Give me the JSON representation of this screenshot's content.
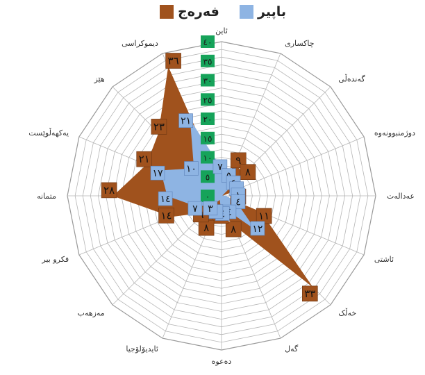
{
  "chart_data": {
    "type": "radar",
    "categories": [
      "ئاین",
      "چاکساری",
      "گەندەڵی",
      "دوژمنبوونەوە",
      "عەدالەت",
      "ئاشتی",
      "خەڵک",
      "گەل",
      "دەعوە",
      "ئایدیۆلۆجیا",
      "مەزهەب",
      "فکرو بیر",
      "متمانە",
      "یەکهەڵوێست",
      "هێز",
      "دیموکراسی"
    ],
    "rlim": [
      0,
      40
    ],
    "r_ticks": [
      "٠",
      "٥",
      "١٠",
      "١٥",
      "٢٠",
      "٢٥",
      "٣٠",
      "٣٥",
      "٤٠"
    ],
    "series": [
      {
        "name": "فەرەج",
        "color": "#A0521D",
        "values": [
          2,
          9,
          8,
          2,
          0,
          11,
          33,
          8,
          4,
          8,
          6,
          14,
          28,
          21,
          23,
          36
        ],
        "labels": [
          "",
          "٩",
          "٨",
          "",
          "٠",
          "١١",
          "٣٣",
          "٨",
          "٤",
          "٨",
          "٦",
          "١٤",
          "٢٨",
          "٢١",
          "٢٣",
          "٣٦"
        ]
      },
      {
        "name": "باپیر",
        "color": "#8EB4E3",
        "values": [
          7,
          5,
          4,
          0,
          1,
          4,
          12,
          4,
          4,
          1,
          3,
          7,
          14,
          17,
          10,
          21
        ],
        "labels": [
          "٧",
          "٥",
          "٤",
          "٠",
          "١",
          "٤",
          "١٢",
          "٤",
          "٤",
          "١",
          "٣",
          "٧",
          "١٤",
          "١٧",
          "١٠",
          "٢١"
        ]
      }
    ],
    "legend_position": "top",
    "grid": true
  }
}
